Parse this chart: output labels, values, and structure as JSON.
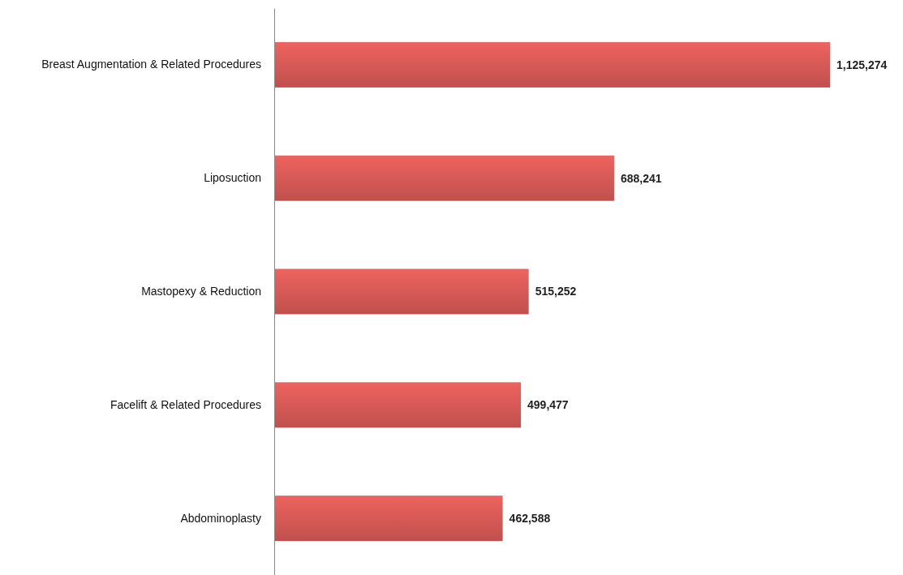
{
  "chart_data": {
    "type": "bar",
    "orientation": "horizontal",
    "categories": [
      "Breast Augmentation & Related Procedures",
      "Liposuction",
      "Mastopexy & Reduction",
      "Facelift & Related Procedures",
      "Abdominoplasty"
    ],
    "values": [
      1125274,
      688241,
      515252,
      499477,
      462588
    ],
    "value_labels": [
      "1,125,274",
      "688,241",
      "515,252",
      "499,477",
      "462,588"
    ],
    "color": "#c0504d"
  }
}
